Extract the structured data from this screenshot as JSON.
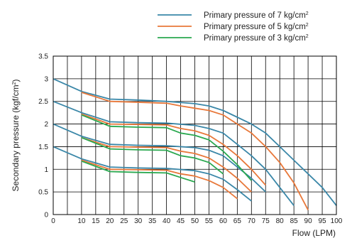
{
  "chart_data": {
    "type": "line",
    "xlabel": "Flow (LPM)",
    "ylabel_main": "Secondary pressure (kgf/cm",
    "ylabel_sup": "2",
    "ylabel_tail": ")",
    "xlim": [
      0,
      100
    ],
    "ylim": [
      0,
      3.5
    ],
    "x_ticks": [
      0,
      10,
      15,
      20,
      25,
      30,
      35,
      40,
      45,
      50,
      55,
      60,
      65,
      70,
      75,
      80,
      85,
      90,
      95,
      100
    ],
    "x_tick_labels": [
      "0",
      "10",
      "15",
      "20",
      "25",
      "30",
      "35",
      "40",
      "45",
      "50",
      "55",
      "60",
      "65",
      "70",
      "75",
      "80",
      "85",
      "90",
      "95",
      "100"
    ],
    "y_ticks": [
      0,
      0.5,
      1,
      1.5,
      2,
      2.5,
      3,
      3.5
    ],
    "y_tick_labels": [
      "0",
      "0.5",
      "1",
      "1.5",
      "2",
      "2.5",
      "3",
      "3.5"
    ],
    "grid": true,
    "legend_position": "top-right",
    "series": [
      {
        "name": "Primary pressure of 7 kg/cm",
        "name_sup": "2",
        "color": "#3a87a8",
        "curves": [
          [
            [
              0,
              3.0
            ],
            [
              10,
              2.72
            ],
            [
              20,
              2.55
            ],
            [
              30,
              2.53
            ],
            [
              40,
              2.5
            ],
            [
              50,
              2.45
            ],
            [
              55,
              2.4
            ],
            [
              60,
              2.3
            ],
            [
              65,
              2.15
            ],
            [
              70,
              2.0
            ],
            [
              75,
              1.8
            ],
            [
              80,
              1.5
            ],
            [
              85,
              1.2
            ],
            [
              90,
              0.9
            ],
            [
              95,
              0.6
            ],
            [
              100,
              0.2
            ]
          ],
          [
            [
              0,
              2.5
            ],
            [
              10,
              2.25
            ],
            [
              20,
              2.05
            ],
            [
              30,
              2.03
            ],
            [
              40,
              2.02
            ],
            [
              50,
              1.97
            ],
            [
              55,
              1.9
            ],
            [
              60,
              1.8
            ],
            [
              65,
              1.55
            ],
            [
              70,
              1.3
            ],
            [
              75,
              1.0
            ],
            [
              80,
              0.6
            ],
            [
              85,
              0.2
            ]
          ],
          [
            [
              0,
              2.0
            ],
            [
              10,
              1.73
            ],
            [
              20,
              1.55
            ],
            [
              30,
              1.53
            ],
            [
              40,
              1.52
            ],
            [
              50,
              1.48
            ],
            [
              55,
              1.42
            ],
            [
              60,
              1.3
            ],
            [
              65,
              1.05
            ],
            [
              70,
              0.8
            ],
            [
              75,
              0.5
            ]
          ],
          [
            [
              0,
              1.5
            ],
            [
              10,
              1.23
            ],
            [
              20,
              1.05
            ],
            [
              30,
              1.03
            ],
            [
              40,
              1.02
            ],
            [
              50,
              0.97
            ],
            [
              55,
              0.9
            ],
            [
              60,
              0.78
            ],
            [
              65,
              0.55
            ],
            [
              70,
              0.3
            ]
          ]
        ]
      },
      {
        "name": "Primary pressure of 5 kg/cm",
        "name_sup": "2",
        "color": "#e8783a",
        "curves": [
          [
            [
              10,
              2.7
            ],
            [
              20,
              2.5
            ],
            [
              30,
              2.48
            ],
            [
              40,
              2.46
            ],
            [
              45,
              2.4
            ],
            [
              50,
              2.35
            ],
            [
              55,
              2.3
            ],
            [
              60,
              2.2
            ],
            [
              65,
              2.0
            ],
            [
              70,
              1.8
            ],
            [
              75,
              1.5
            ],
            [
              80,
              1.15
            ],
            [
              85,
              0.7
            ],
            [
              90,
              0.1
            ]
          ],
          [
            [
              10,
              2.22
            ],
            [
              20,
              2.0
            ],
            [
              30,
              1.99
            ],
            [
              40,
              1.98
            ],
            [
              45,
              1.9
            ],
            [
              50,
              1.85
            ],
            [
              55,
              1.75
            ],
            [
              60,
              1.55
            ],
            [
              65,
              1.3
            ],
            [
              70,
              1.0
            ],
            [
              75,
              0.65
            ]
          ],
          [
            [
              10,
              1.7
            ],
            [
              20,
              1.5
            ],
            [
              30,
              1.49
            ],
            [
              40,
              1.48
            ],
            [
              45,
              1.4
            ],
            [
              50,
              1.35
            ],
            [
              55,
              1.25
            ],
            [
              60,
              1.05
            ],
            [
              65,
              0.8
            ],
            [
              70,
              0.5
            ]
          ],
          [
            [
              10,
              1.2
            ],
            [
              20,
              1.0
            ],
            [
              30,
              0.99
            ],
            [
              40,
              0.98
            ],
            [
              45,
              0.9
            ],
            [
              50,
              0.85
            ],
            [
              55,
              0.75
            ],
            [
              60,
              0.6
            ],
            [
              65,
              0.35
            ]
          ]
        ]
      },
      {
        "name": "Primary pressure of 3 kg/cm",
        "name_sup": "2",
        "color": "#2aa84f",
        "curves": [
          [
            [
              10,
              2.2
            ],
            [
              20,
              1.95
            ],
            [
              30,
              1.93
            ],
            [
              40,
              1.92
            ],
            [
              45,
              1.8
            ],
            [
              50,
              1.75
            ],
            [
              55,
              1.65
            ],
            [
              60,
              1.4
            ],
            [
              65,
              1.1
            ],
            [
              70,
              0.75
            ]
          ],
          [
            [
              10,
              1.7
            ],
            [
              20,
              1.45
            ],
            [
              30,
              1.43
            ],
            [
              40,
              1.42
            ],
            [
              45,
              1.3
            ],
            [
              50,
              1.25
            ],
            [
              55,
              1.15
            ],
            [
              60,
              0.9
            ]
          ],
          [
            [
              10,
              1.18
            ],
            [
              20,
              0.95
            ],
            [
              30,
              0.93
            ],
            [
              40,
              0.92
            ],
            [
              45,
              0.82
            ],
            [
              50,
              0.72
            ]
          ]
        ]
      }
    ]
  }
}
